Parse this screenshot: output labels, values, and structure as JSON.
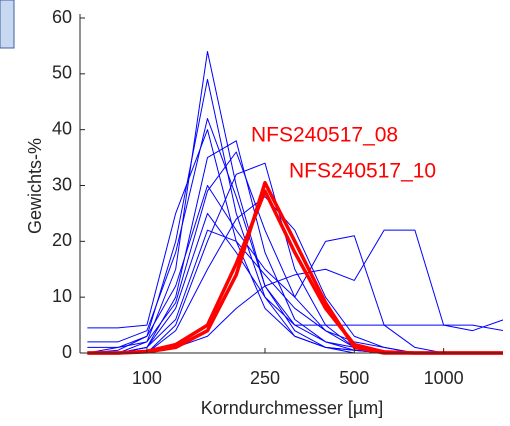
{
  "chart_data": {
    "type": "line",
    "x_label": "Korndurchmesser [µm]",
    "y_label": "Gewichts-%",
    "x": [
      63,
      80,
      100,
      125,
      160,
      200,
      250,
      315,
      400,
      500,
      630,
      800,
      1000,
      1250,
      1600
    ],
    "xscale": "log",
    "xlim": [
      59.5,
      1585
    ],
    "ylim": [
      0,
      60
    ],
    "xticks": [
      100,
      250,
      500,
      1000
    ],
    "yticks": [
      0,
      10,
      20,
      30,
      40,
      50,
      60
    ],
    "series": [
      {
        "color": "#0000ff",
        "values": [
          0,
          0.5,
          3,
          20,
          49,
          25,
          10,
          3,
          1,
          0.5,
          0,
          0,
          0,
          0,
          0
        ]
      },
      {
        "color": "#0000ff",
        "values": [
          0,
          0,
          2,
          15,
          54,
          30,
          12,
          4,
          1,
          0,
          0,
          0,
          0,
          0,
          0
        ]
      },
      {
        "color": "#0000ff",
        "values": [
          4.5,
          4.5,
          5,
          25,
          40,
          20,
          8,
          3,
          1,
          0.5,
          0,
          0,
          0,
          0,
          0
        ]
      },
      {
        "color": "#0000ff",
        "values": [
          0,
          0,
          1,
          10,
          35,
          38,
          18,
          6,
          2,
          0.5,
          0,
          0,
          0,
          0,
          0
        ]
      },
      {
        "color": "#0000ff",
        "values": [
          0,
          0,
          0,
          5,
          20,
          32,
          34,
          15,
          5,
          1,
          0,
          0,
          0,
          0,
          0
        ]
      },
      {
        "color": "#0000ff",
        "values": [
          0,
          1,
          3,
          12,
          30,
          22,
          15,
          10,
          20,
          21,
          5,
          1,
          0,
          0,
          0
        ]
      },
      {
        "color": "#0000ff",
        "values": [
          0,
          0,
          0,
          1,
          3,
          8,
          12,
          14,
          15,
          13,
          22,
          22,
          5,
          4,
          6
        ]
      },
      {
        "color": "#0000ff",
        "values": [
          0,
          0,
          1,
          8,
          25,
          18,
          10,
          5,
          5,
          5,
          5,
          5,
          5,
          5,
          4
        ]
      },
      {
        "color": "#0000ff",
        "values": [
          2,
          2,
          4,
          18,
          42,
          28,
          12,
          5,
          2,
          1,
          0,
          0,
          0,
          0,
          0
        ]
      },
      {
        "color": "#0000ff",
        "values": [
          0,
          0,
          0,
          4,
          15,
          24,
          28,
          22,
          10,
          3,
          1,
          0,
          0,
          0,
          0
        ]
      },
      {
        "color": "#0000ff",
        "values": [
          1,
          1,
          2,
          9,
          29,
          36,
          22,
          10,
          4,
          1,
          0,
          0,
          0,
          0,
          0
        ]
      },
      {
        "color": "#0000ff",
        "values": [
          0,
          0,
          1,
          6,
          22,
          20,
          14,
          8,
          4,
          2,
          1,
          0,
          0,
          0,
          0
        ]
      },
      {
        "name": "NFS240517_08",
        "color": "#ff0000",
        "values": [
          0,
          0,
          0.2,
          1,
          4,
          14,
          30.5,
          20,
          9,
          1,
          0,
          0,
          0,
          0,
          0
        ]
      },
      {
        "name": "NFS240517_10",
        "color": "#ff0000",
        "values": [
          0,
          0,
          0.3,
          1.5,
          5,
          16,
          29,
          18,
          8,
          1.5,
          0.2,
          0,
          0,
          0,
          0
        ]
      }
    ]
  }
}
